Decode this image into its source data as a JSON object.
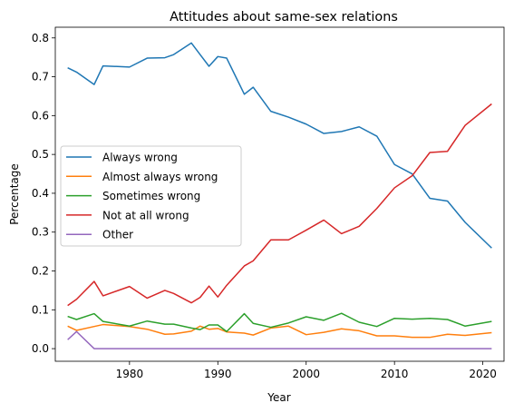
{
  "chart_data": {
    "type": "line",
    "title": "Attitudes about same-sex relations",
    "xlabel": "Year",
    "ylabel": "Percentage",
    "xlim": [
      1971.6,
      2022.4
    ],
    "ylim": [
      -0.0325,
      0.8275
    ],
    "xticks": [
      1980,
      1990,
      2000,
      2010,
      2020
    ],
    "yticks": [
      0.0,
      0.1,
      0.2,
      0.3,
      0.4,
      0.5,
      0.6,
      0.7,
      0.8
    ],
    "ytick_labels": [
      "0.0",
      "0.1",
      "0.2",
      "0.3",
      "0.4",
      "0.5",
      "0.6",
      "0.7",
      "0.8"
    ],
    "grid": false,
    "legend_position": "center-left",
    "x": [
      1973,
      1974,
      1976,
      1977,
      1980,
      1982,
      1984,
      1985,
      1987,
      1988,
      1989,
      1990,
      1991,
      1993,
      1994,
      1996,
      1998,
      2000,
      2002,
      2004,
      2006,
      2008,
      2010,
      2012,
      2014,
      2016,
      2018,
      2021
    ],
    "series": [
      {
        "name": "Always wrong",
        "color": "#1f77b4",
        "values": [
          0.723,
          0.712,
          0.68,
          0.728,
          0.725,
          0.748,
          0.749,
          0.757,
          0.787,
          0.757,
          0.727,
          0.752,
          0.748,
          0.655,
          0.673,
          0.611,
          0.596,
          0.578,
          0.554,
          0.559,
          0.571,
          0.547,
          0.474,
          0.45,
          0.387,
          0.38,
          0.325,
          0.259
        ]
      },
      {
        "name": "Almost always wrong",
        "color": "#ff7f0e",
        "values": [
          0.058,
          0.047,
          0.057,
          0.062,
          0.057,
          0.05,
          0.037,
          0.038,
          0.045,
          0.058,
          0.05,
          0.052,
          0.043,
          0.04,
          0.035,
          0.053,
          0.058,
          0.036,
          0.042,
          0.051,
          0.046,
          0.033,
          0.033,
          0.029,
          0.029,
          0.037,
          0.034,
          0.041
        ]
      },
      {
        "name": "Sometimes wrong",
        "color": "#2ca02c",
        "values": [
          0.083,
          0.075,
          0.09,
          0.07,
          0.058,
          0.071,
          0.063,
          0.063,
          0.053,
          0.049,
          0.061,
          0.061,
          0.044,
          0.09,
          0.065,
          0.055,
          0.066,
          0.082,
          0.073,
          0.091,
          0.068,
          0.057,
          0.078,
          0.076,
          0.078,
          0.075,
          0.058,
          0.07
        ]
      },
      {
        "name": "Not at all wrong",
        "color": "#d62728",
        "values": [
          0.111,
          0.127,
          0.173,
          0.136,
          0.16,
          0.13,
          0.15,
          0.142,
          0.118,
          0.132,
          0.161,
          0.133,
          0.163,
          0.213,
          0.226,
          0.28,
          0.28,
          0.305,
          0.331,
          0.296,
          0.315,
          0.361,
          0.414,
          0.445,
          0.505,
          0.508,
          0.575,
          0.63
        ]
      },
      {
        "name": "Other",
        "color": "#9467bd",
        "values": [
          0.023,
          0.044,
          0.0,
          0.0,
          0.0,
          0.0,
          0.0,
          0.0,
          0.0,
          0.0,
          0.0,
          0.0,
          0.0,
          0.0,
          0.0,
          0.0,
          0.0,
          0.0,
          0.0,
          0.0,
          0.0,
          0.0,
          0.0,
          0.0,
          0.0,
          0.0,
          0.0,
          0.0
        ]
      }
    ]
  }
}
